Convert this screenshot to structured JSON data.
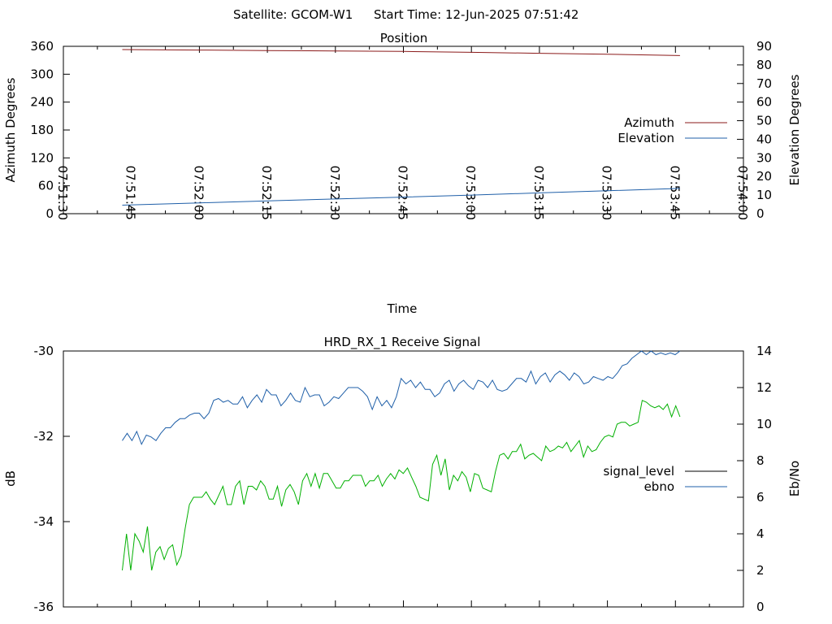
{
  "header": {
    "satellite_label": "Satellite: GCOM-W1",
    "start_time_label": "Start Time: 12-Jun-2025 07:51:42"
  },
  "chart_data": [
    {
      "type": "line",
      "title": "Position",
      "xlabel": "Time",
      "ylabel": "Azimuth Degrees",
      "y2label": "Elevation Degrees",
      "xlim": [
        "07:51:30",
        "07:54:00"
      ],
      "x_ticks": [
        "07:51:30",
        "07:51:45",
        "07:52:00",
        "07:52:15",
        "07:52:30",
        "07:52:45",
        "07:53:00",
        "07:53:15",
        "07:53:30",
        "07:53:45",
        "07:54:00"
      ],
      "ylim": [
        0,
        360
      ],
      "y_ticks": [
        0,
        60,
        120,
        180,
        240,
        300,
        360
      ],
      "y2lim": [
        0,
        90
      ],
      "y2_ticks": [
        0,
        10,
        20,
        30,
        40,
        50,
        60,
        70,
        80,
        90
      ],
      "grid": false,
      "legend": "right",
      "series": [
        {
          "name": "Azimuth",
          "axis": "left",
          "color": "#8b1a1a",
          "x": [
            "07:51:43",
            "07:52:00",
            "07:52:15",
            "07:52:30",
            "07:52:45",
            "07:53:00",
            "07:53:15",
            "07:53:30",
            "07:53:46"
          ],
          "y": [
            353,
            352,
            351,
            350,
            349,
            347,
            345,
            343,
            340
          ]
        },
        {
          "name": "Elevation",
          "axis": "right",
          "color": "#1f5fa8",
          "x": [
            "07:51:43",
            "07:52:00",
            "07:52:15",
            "07:52:30",
            "07:52:45",
            "07:53:00",
            "07:53:15",
            "07:53:30",
            "07:53:46"
          ],
          "y": [
            4.6,
            5.8,
            6.9,
            7.9,
            8.9,
            10.0,
            11.2,
            12.3,
            13.6
          ]
        }
      ]
    },
    {
      "type": "line",
      "title": "HRD_RX_1 Receive Signal",
      "xlabel": "",
      "ylabel": "dB",
      "y2label": "Eb/No",
      "ylim": [
        -36,
        -30
      ],
      "y_ticks": [
        -36,
        -34,
        -32,
        -30
      ],
      "y2lim": [
        0,
        14
      ],
      "y2_ticks": [
        0,
        2,
        4,
        6,
        8,
        10,
        12,
        14
      ],
      "grid": false,
      "legend": "right",
      "series": [
        {
          "name": "signal_level",
          "axis": "left",
          "color": "#000000",
          "values": []
        },
        {
          "name": "ebno",
          "axis": "right",
          "color": "#1f5fa8",
          "values": [
            9.1,
            9.5,
            9.1,
            9.6,
            8.9,
            9.4,
            9.3,
            9.1,
            9.5,
            9.8,
            9.8,
            10.1,
            10.3,
            10.3,
            10.5,
            10.6,
            10.6,
            10.3,
            10.6,
            11.3,
            11.4,
            11.2,
            11.3,
            11.1,
            11.1,
            11.5,
            10.9,
            11.3,
            11.6,
            11.2,
            11.9,
            11.6,
            11.6,
            11.0,
            11.3,
            11.7,
            11.3,
            11.2,
            12.0,
            11.5,
            11.6,
            11.6,
            11.0,
            11.2,
            11.5,
            11.4,
            11.7,
            12.0,
            12.0,
            12.0,
            11.8,
            11.5,
            10.8,
            11.5,
            11.0,
            11.3,
            10.9,
            11.5,
            12.5,
            12.2,
            12.4,
            12.0,
            12.3,
            11.9,
            11.9,
            11.5,
            11.7,
            12.2,
            12.4,
            11.8,
            12.2,
            12.4,
            12.1,
            11.9,
            12.4,
            12.3,
            12.0,
            12.4,
            11.9,
            11.8,
            11.9,
            12.2,
            12.5,
            12.5,
            12.3,
            12.9,
            12.2,
            12.6,
            12.8,
            12.3,
            12.7,
            12.9,
            12.7,
            12.4,
            12.8,
            12.6,
            12.2,
            12.3,
            12.6,
            12.5,
            12.4,
            12.6,
            12.5,
            12.8,
            13.2,
            13.3,
            13.6,
            13.8,
            14.0,
            13.8,
            14.0,
            13.8,
            13.9,
            13.8,
            13.9,
            13.8,
            14.0
          ]
        },
        {
          "name": "",
          "axis": "right",
          "color": "#00b000",
          "values": [
            2.0,
            4.0,
            2.0,
            4.0,
            3.6,
            3.0,
            4.4,
            2.0,
            3.0,
            3.3,
            2.6,
            3.2,
            3.4,
            2.3,
            2.8,
            4.3,
            5.6,
            6.0,
            6.0,
            6.0,
            6.3,
            5.9,
            5.6,
            6.1,
            6.6,
            5.6,
            5.6,
            6.6,
            6.9,
            5.6,
            6.6,
            6.6,
            6.4,
            6.9,
            6.6,
            5.9,
            5.9,
            6.6,
            5.5,
            6.4,
            6.7,
            6.3,
            5.6,
            6.9,
            7.3,
            6.6,
            7.3,
            6.5,
            7.3,
            7.3,
            6.9,
            6.5,
            6.5,
            6.9,
            6.9,
            7.2,
            7.2,
            7.2,
            6.6,
            6.9,
            6.9,
            7.2,
            6.6,
            7.0,
            7.3,
            7.0,
            7.5,
            7.3,
            7.6,
            7.1,
            6.6,
            6.0,
            5.9,
            5.8,
            7.8,
            8.3,
            7.2,
            8.1,
            6.4,
            7.2,
            6.9,
            7.4,
            7.1,
            6.3,
            7.3,
            7.2,
            6.5,
            6.4,
            6.3,
            7.4,
            8.3,
            8.4,
            8.1,
            8.5,
            8.5,
            8.9,
            8.1,
            8.3,
            8.4,
            8.2,
            8.0,
            8.8,
            8.5,
            8.6,
            8.8,
            8.7,
            9.0,
            8.5,
            8.8,
            9.1,
            8.2,
            8.8,
            8.5,
            8.6,
            9.0,
            9.3,
            9.4,
            9.3,
            10.0,
            10.1,
            10.1,
            9.9,
            10.0,
            10.1,
            11.3,
            11.2,
            11.0,
            10.9,
            11.0,
            10.8,
            11.1,
            10.4,
            11.0,
            10.4
          ]
        }
      ]
    }
  ]
}
